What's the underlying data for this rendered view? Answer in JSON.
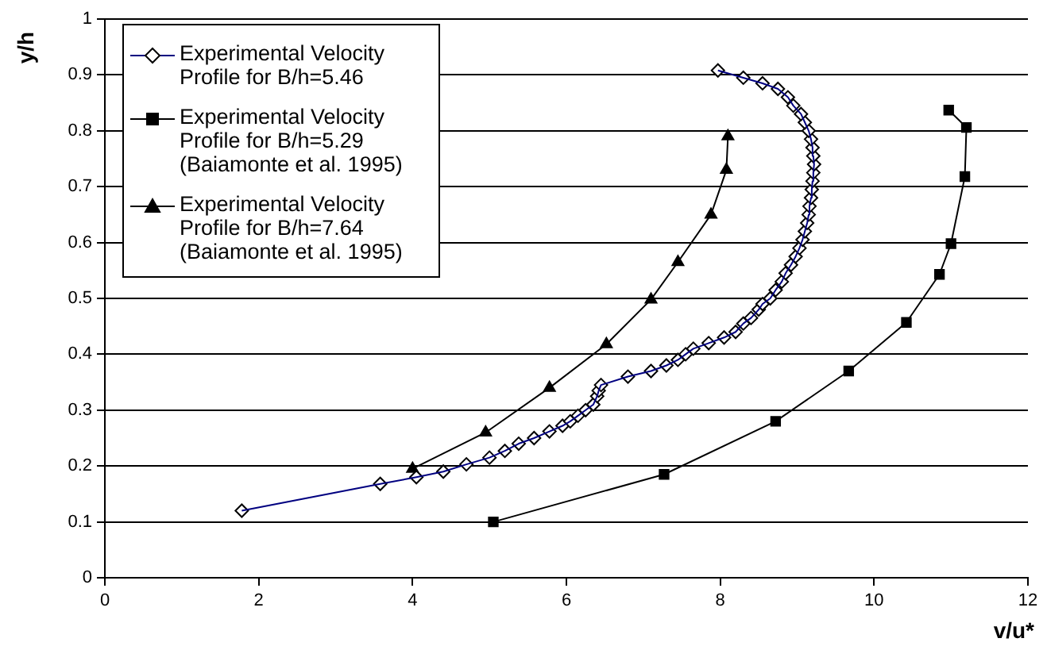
{
  "chart_data": {
    "type": "line",
    "xlabel": "v/u*",
    "ylabel": "y/h",
    "xlim": [
      0,
      12
    ],
    "xticks": [
      0,
      2,
      4,
      6,
      8,
      10,
      12
    ],
    "ylim": [
      0,
      1
    ],
    "yticks": [
      0,
      0.1,
      0.2,
      0.3,
      0.4,
      0.5,
      0.6,
      0.7,
      0.8,
      0.9,
      1
    ],
    "grid": "y",
    "legend": "top left",
    "line_style": "solid",
    "series": [
      {
        "name": "Experimental Velocity Profile for B/h=5.46",
        "color": "#000080",
        "marker": "diamond",
        "x": [
          1.78,
          3.58,
          4.05,
          4.4,
          4.7,
          5.0,
          5.2,
          5.38,
          5.58,
          5.78,
          5.95,
          6.05,
          6.15,
          6.25,
          6.35,
          6.4,
          6.42,
          6.45,
          6.8,
          7.1,
          7.3,
          7.45,
          7.55,
          7.65,
          7.85,
          8.05,
          8.2,
          8.3,
          8.4,
          8.5,
          8.55,
          8.65,
          8.72,
          8.8,
          8.85,
          8.92,
          8.98,
          9.03,
          9.07,
          9.1,
          9.13,
          9.15,
          9.16,
          9.18,
          9.19,
          9.2,
          9.21,
          9.22,
          9.21,
          9.2,
          9.18,
          9.15,
          9.1,
          9.05,
          8.95,
          8.88,
          8.75,
          8.55,
          8.3,
          7.97
        ],
        "values": [
          0.12,
          0.168,
          0.18,
          0.19,
          0.203,
          0.215,
          0.227,
          0.24,
          0.25,
          0.262,
          0.272,
          0.28,
          0.29,
          0.3,
          0.31,
          0.325,
          0.335,
          0.345,
          0.36,
          0.37,
          0.38,
          0.39,
          0.4,
          0.41,
          0.42,
          0.43,
          0.44,
          0.455,
          0.465,
          0.48,
          0.49,
          0.5,
          0.515,
          0.53,
          0.545,
          0.56,
          0.575,
          0.59,
          0.605,
          0.62,
          0.635,
          0.65,
          0.665,
          0.68,
          0.695,
          0.71,
          0.725,
          0.74,
          0.755,
          0.77,
          0.785,
          0.8,
          0.815,
          0.83,
          0.845,
          0.86,
          0.875,
          0.885,
          0.895,
          0.908
        ]
      },
      {
        "name": "Experimental Velocity Profile for B/h=5.29 (Baiamonte et al. 1995)",
        "color": "#000000",
        "marker": "square",
        "x": [
          5.05,
          7.27,
          8.72,
          9.67,
          10.42,
          10.85,
          11.0,
          11.18,
          11.2,
          10.97
        ],
        "values": [
          0.1,
          0.185,
          0.28,
          0.37,
          0.457,
          0.543,
          0.598,
          0.718,
          0.806,
          0.837
        ]
      },
      {
        "name": "Experimental Velocity Profile for B/h=7.64 (Baiamonte et al. 1995)",
        "color": "#000000",
        "marker": "triangle",
        "x": [
          4.0,
          4.95,
          5.78,
          6.52,
          7.1,
          7.45,
          7.88,
          8.08,
          8.1
        ],
        "values": [
          0.195,
          0.26,
          0.34,
          0.418,
          0.498,
          0.565,
          0.65,
          0.73,
          0.79
        ]
      }
    ]
  }
}
